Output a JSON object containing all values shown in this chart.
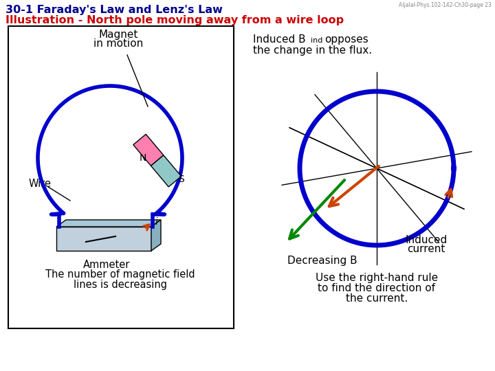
{
  "watermark": "Aljalal-Phys.102-142-Ch30-page 23",
  "title1": "30-1 Faraday's Law and Lenz's Law",
  "title2": "Illustration - North pole moving away from a wire loop",
  "title1_color": "#00008B",
  "title2_color": "#cc0000",
  "bg": "#ffffff",
  "blue": "#0000cc",
  "orange": "#cc4400",
  "green": "#008800",
  "black": "#000000",
  "pink": "#FF80B0",
  "cyan_mag": "#90C8C8",
  "ammeter_top": "#a8c8d8",
  "ammeter_front": "#c0d0dc",
  "ammeter_side": "#88b0c0"
}
